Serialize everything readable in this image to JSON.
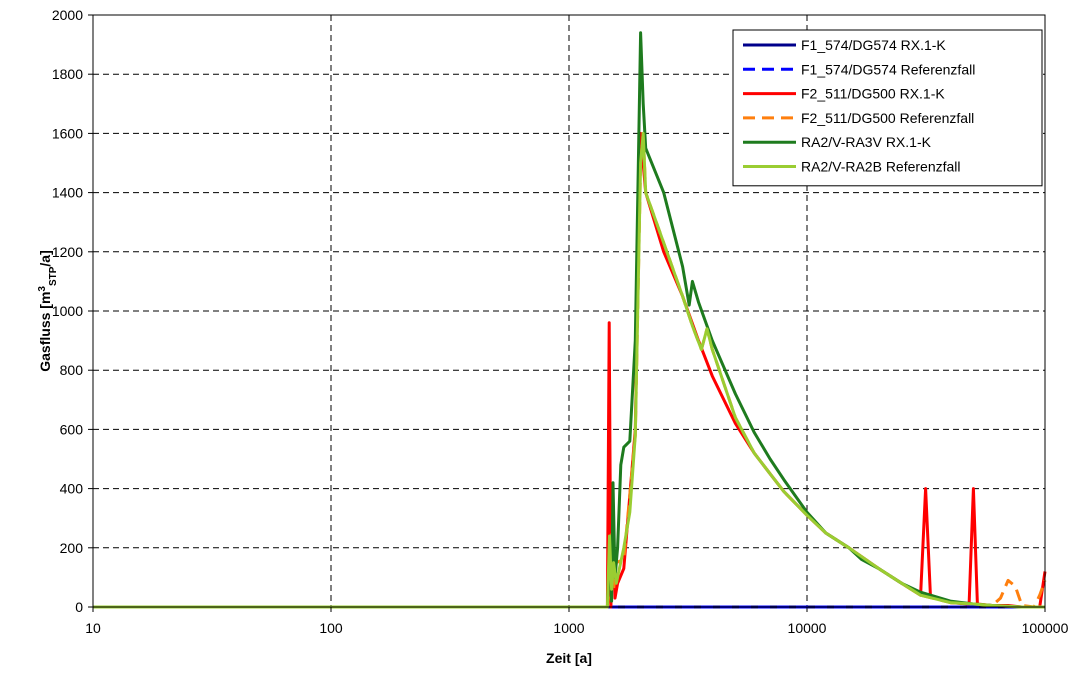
{
  "chart_data": {
    "type": "line",
    "xlabel": "Zeit [a]",
    "ylabel": {
      "main": "Gasfluss [m",
      "sup": "3",
      "sub": "STP",
      "tail": "/a]"
    },
    "x_scale": "log",
    "xlim": [
      10,
      100000
    ],
    "ylim": [
      0,
      2000
    ],
    "x_ticks": [
      10,
      100,
      1000,
      10000,
      100000
    ],
    "x_tick_labels": [
      "10",
      "100",
      "1000",
      "10000",
      "100000"
    ],
    "y_ticks": [
      0,
      200,
      400,
      600,
      800,
      1000,
      1200,
      1400,
      1600,
      1800,
      2000
    ],
    "y_tick_labels": [
      "0",
      "200",
      "400",
      "600",
      "800",
      "1000",
      "1200",
      "1400",
      "1600",
      "1800",
      "2000"
    ],
    "grid": true,
    "legend_position": "top-right",
    "series": [
      {
        "name": "F1_574/DG574 RX.1-K",
        "color": "#00008b",
        "dash": "solid",
        "points": [
          [
            10,
            0
          ],
          [
            100,
            0
          ],
          [
            1000,
            0
          ],
          [
            10000,
            0
          ],
          [
            30000,
            0
          ],
          [
            100000,
            0
          ]
        ]
      },
      {
        "name": "F1_574/DG574 Referenzfall",
        "color": "#0000ff",
        "dash": "dashed",
        "points": [
          [
            10,
            0
          ],
          [
            100,
            0
          ],
          [
            1000,
            0
          ],
          [
            10000,
            0
          ],
          [
            30000,
            0
          ],
          [
            100000,
            0
          ]
        ]
      },
      {
        "name": "F2_511/DG500 RX.1-K",
        "color": "#ff0000",
        "dash": "solid",
        "points": [
          [
            10,
            0
          ],
          [
            1000,
            0
          ],
          [
            1450,
            0
          ],
          [
            1475,
            960
          ],
          [
            1500,
            0
          ],
          [
            1530,
            280
          ],
          [
            1560,
            30
          ],
          [
            1600,
            80
          ],
          [
            1700,
            130
          ],
          [
            1900,
            600
          ],
          [
            2000,
            1600
          ],
          [
            2100,
            1400
          ],
          [
            2500,
            1200
          ],
          [
            3000,
            1050
          ],
          [
            3500,
            900
          ],
          [
            4000,
            780
          ],
          [
            5000,
            620
          ],
          [
            6000,
            520
          ],
          [
            7000,
            450
          ],
          [
            8000,
            390
          ],
          [
            10000,
            310
          ],
          [
            12000,
            250
          ],
          [
            15000,
            200
          ],
          [
            20000,
            130
          ],
          [
            25000,
            80
          ],
          [
            30000,
            40
          ],
          [
            31500,
            400
          ],
          [
            33000,
            40
          ],
          [
            40000,
            15
          ],
          [
            48000,
            10
          ],
          [
            50000,
            400
          ],
          [
            52000,
            10
          ],
          [
            60000,
            5
          ],
          [
            70000,
            5
          ],
          [
            80000,
            0
          ],
          [
            95000,
            0
          ],
          [
            100000,
            120
          ]
        ]
      },
      {
        "name": "F2_511/DG500 Referenzfall",
        "color": "#ff7f0e",
        "dash": "dashed",
        "points": [
          [
            10,
            0
          ],
          [
            1000,
            0
          ],
          [
            1450,
            0
          ],
          [
            1480,
            60
          ],
          [
            1510,
            250
          ],
          [
            1540,
            60
          ],
          [
            1580,
            150
          ],
          [
            1700,
            160
          ],
          [
            1900,
            580
          ],
          [
            2000,
            1500
          ],
          [
            2050,
            1600
          ],
          [
            2100,
            1400
          ],
          [
            2500,
            1230
          ],
          [
            3000,
            1050
          ],
          [
            3300,
            950
          ],
          [
            3600,
            870
          ],
          [
            3800,
            940
          ],
          [
            4000,
            870
          ],
          [
            5000,
            640
          ],
          [
            6000,
            520
          ],
          [
            7000,
            450
          ],
          [
            8000,
            390
          ],
          [
            10000,
            310
          ],
          [
            12000,
            250
          ],
          [
            15000,
            200
          ],
          [
            20000,
            130
          ],
          [
            25000,
            80
          ],
          [
            30000,
            40
          ],
          [
            40000,
            15
          ],
          [
            50000,
            10
          ],
          [
            60000,
            5
          ],
          [
            65000,
            30
          ],
          [
            70000,
            90
          ],
          [
            75000,
            70
          ],
          [
            80000,
            5
          ],
          [
            90000,
            0
          ],
          [
            95000,
            40
          ],
          [
            100000,
            90
          ]
        ]
      },
      {
        "name": "RA2/V-RA3V RX.1-K",
        "color": "#1e7b1e",
        "dash": "solid",
        "points": [
          [
            10,
            0
          ],
          [
            1000,
            0
          ],
          [
            1450,
            0
          ],
          [
            1480,
            200
          ],
          [
            1510,
            20
          ],
          [
            1530,
            420
          ],
          [
            1560,
            100
          ],
          [
            1600,
            200
          ],
          [
            1650,
            480
          ],
          [
            1700,
            540
          ],
          [
            1800,
            560
          ],
          [
            1900,
            900
          ],
          [
            2000,
            1940
          ],
          [
            2050,
            1700
          ],
          [
            2100,
            1550
          ],
          [
            2500,
            1400
          ],
          [
            3000,
            1150
          ],
          [
            3200,
            1020
          ],
          [
            3300,
            1100
          ],
          [
            3500,
            1030
          ],
          [
            4000,
            900
          ],
          [
            5000,
            720
          ],
          [
            6000,
            590
          ],
          [
            7000,
            500
          ],
          [
            8000,
            430
          ],
          [
            10000,
            320
          ],
          [
            12000,
            250
          ],
          [
            15000,
            200
          ],
          [
            17000,
            160
          ],
          [
            20000,
            130
          ],
          [
            25000,
            80
          ],
          [
            30000,
            50
          ],
          [
            40000,
            20
          ],
          [
            50000,
            10
          ],
          [
            60000,
            5
          ],
          [
            80000,
            0
          ],
          [
            100000,
            0
          ]
        ]
      },
      {
        "name": "RA2/V-RA2B Referenzfall",
        "color": "#9acd32",
        "dash": "solid",
        "points": [
          [
            10,
            0
          ],
          [
            1000,
            0
          ],
          [
            1450,
            0
          ],
          [
            1480,
            240
          ],
          [
            1510,
            60
          ],
          [
            1540,
            150
          ],
          [
            1580,
            80
          ],
          [
            1700,
            200
          ],
          [
            1800,
            320
          ],
          [
            1900,
            580
          ],
          [
            2000,
            1500
          ],
          [
            2050,
            1600
          ],
          [
            2100,
            1400
          ],
          [
            2500,
            1230
          ],
          [
            3000,
            1050
          ],
          [
            3300,
            950
          ],
          [
            3600,
            870
          ],
          [
            3800,
            940
          ],
          [
            4000,
            870
          ],
          [
            5000,
            640
          ],
          [
            6000,
            520
          ],
          [
            7000,
            450
          ],
          [
            8000,
            390
          ],
          [
            10000,
            310
          ],
          [
            12000,
            250
          ],
          [
            15000,
            200
          ],
          [
            20000,
            130
          ],
          [
            25000,
            80
          ],
          [
            30000,
            40
          ],
          [
            40000,
            15
          ],
          [
            50000,
            10
          ],
          [
            60000,
            5
          ],
          [
            80000,
            0
          ],
          [
            100000,
            0
          ]
        ]
      }
    ]
  }
}
